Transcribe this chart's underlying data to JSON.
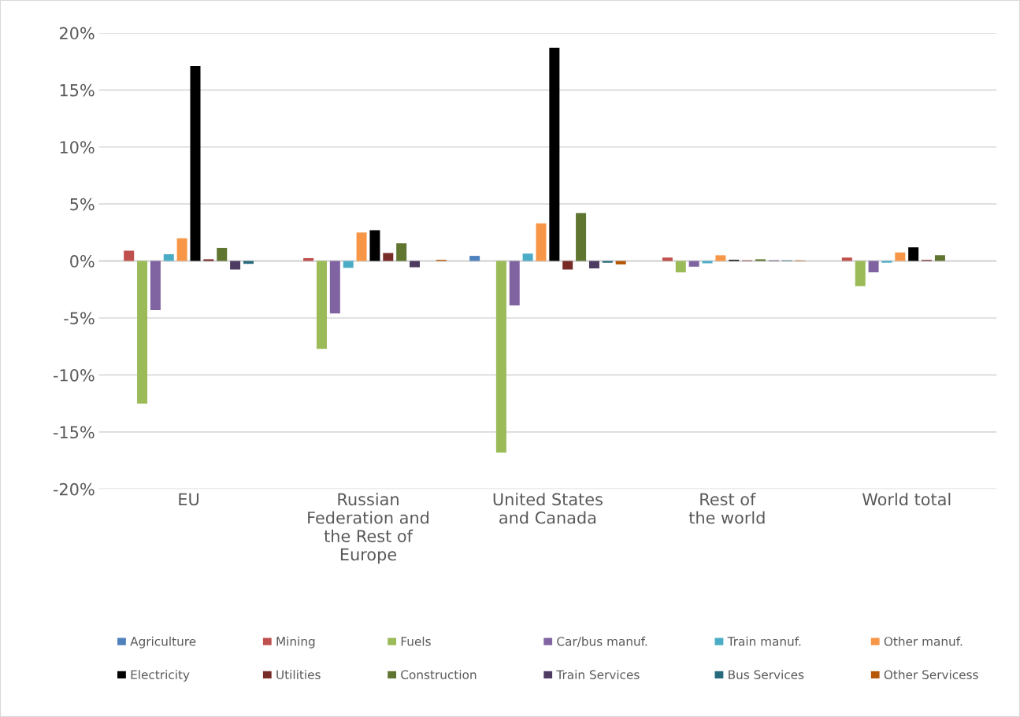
{
  "chart_data": {
    "type": "bar",
    "categories": [
      "EU",
      "Russian\nFederation and\nthe Rest of\nEurope",
      "United States\nand Canada",
      "Rest of\nthe world",
      "World total"
    ],
    "series": [
      {
        "name": "Agriculture",
        "color": "#4f81bd",
        "values": [
          null,
          null,
          0.45,
          null,
          null
        ]
      },
      {
        "name": "Mining",
        "color": "#c0504d",
        "values": [
          0.9,
          0.25,
          null,
          0.3,
          0.3
        ]
      },
      {
        "name": "Fuels",
        "color": "#9bbb59",
        "values": [
          -12.5,
          -7.7,
          -16.8,
          -1.0,
          -2.2
        ]
      },
      {
        "name": "Car/bus manuf.",
        "color": "#8064a2",
        "values": [
          -4.3,
          -4.6,
          -3.9,
          -0.5,
          -1.0
        ]
      },
      {
        "name": "Train manuf.",
        "color": "#4bacc6",
        "values": [
          0.6,
          -0.6,
          0.65,
          -0.2,
          -0.15
        ]
      },
      {
        "name": "Other manuf.",
        "color": "#f79646",
        "values": [
          2.0,
          2.5,
          3.3,
          0.5,
          0.75
        ]
      },
      {
        "name": "Electricity",
        "color": "#000000",
        "values": [
          17.1,
          2.7,
          18.7,
          0.1,
          1.2
        ]
      },
      {
        "name": "Utilities",
        "color": "#772c2a",
        "values": [
          0.15,
          0.7,
          -0.75,
          0.05,
          0.1
        ]
      },
      {
        "name": "Construction",
        "color": "#5f7530",
        "values": [
          1.15,
          1.55,
          4.2,
          0.15,
          0.5
        ]
      },
      {
        "name": "Train Services",
        "color": "#4d3b62",
        "values": [
          -0.75,
          -0.55,
          -0.65,
          0.05,
          null
        ]
      },
      {
        "name": "Bus Services",
        "color": "#276a7c",
        "values": [
          -0.25,
          null,
          -0.15,
          0.05,
          null
        ]
      },
      {
        "name": "Other Servicess",
        "color": "#b65708",
        "values": [
          null,
          0.1,
          -0.3,
          0.05,
          null
        ]
      }
    ],
    "ylim": [
      -20,
      20
    ],
    "yticks": [
      {
        "value": -20,
        "label": "-20%"
      },
      {
        "value": -15,
        "label": "-15%"
      },
      {
        "value": -10,
        "label": "-10%"
      },
      {
        "value": -5,
        "label": "-5%"
      },
      {
        "value": 0,
        "label": "0%"
      },
      {
        "value": 5,
        "label": "5%"
      },
      {
        "value": 10,
        "label": "10%"
      },
      {
        "value": 15,
        "label": "15%"
      },
      {
        "value": 20,
        "label": "20%"
      }
    ],
    "grid": "y",
    "legend": "bottom"
  }
}
